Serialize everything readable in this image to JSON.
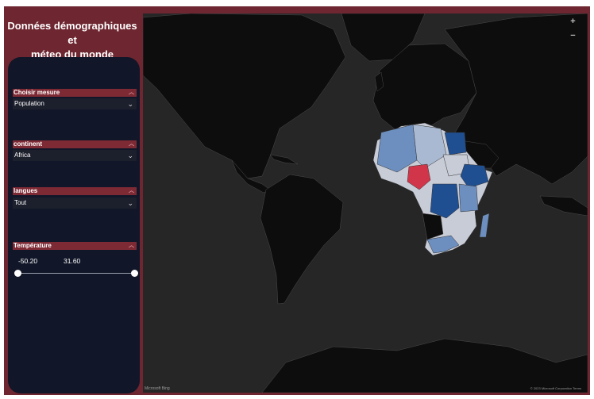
{
  "report": {
    "title_line1": "Données démographiques et",
    "title_line2": "méteo du monde"
  },
  "slicers": {
    "measure": {
      "label": "Choisir mesure",
      "value": "Population"
    },
    "continent": {
      "label": "continent",
      "value": "Africa"
    },
    "language": {
      "label": "langues",
      "value": "Tout"
    },
    "temperature": {
      "label": "Température",
      "min_label": "-50.20",
      "max_label": "31.60",
      "min": -50.2,
      "max": 31.6
    }
  },
  "map": {
    "zoom_in": "+",
    "zoom_out": "−",
    "provider_logo": "Microsoft Bing",
    "copyright": "© 2023 Microsoft Corporation Terms",
    "colors": {
      "land_default": "#0d0d0d",
      "ocean": "#262626",
      "highlight_red": "#d1354a",
      "africa_low": "#c8ccd6",
      "africa_mid": "#6d8fbf",
      "africa_high": "#1f4e91"
    }
  }
}
